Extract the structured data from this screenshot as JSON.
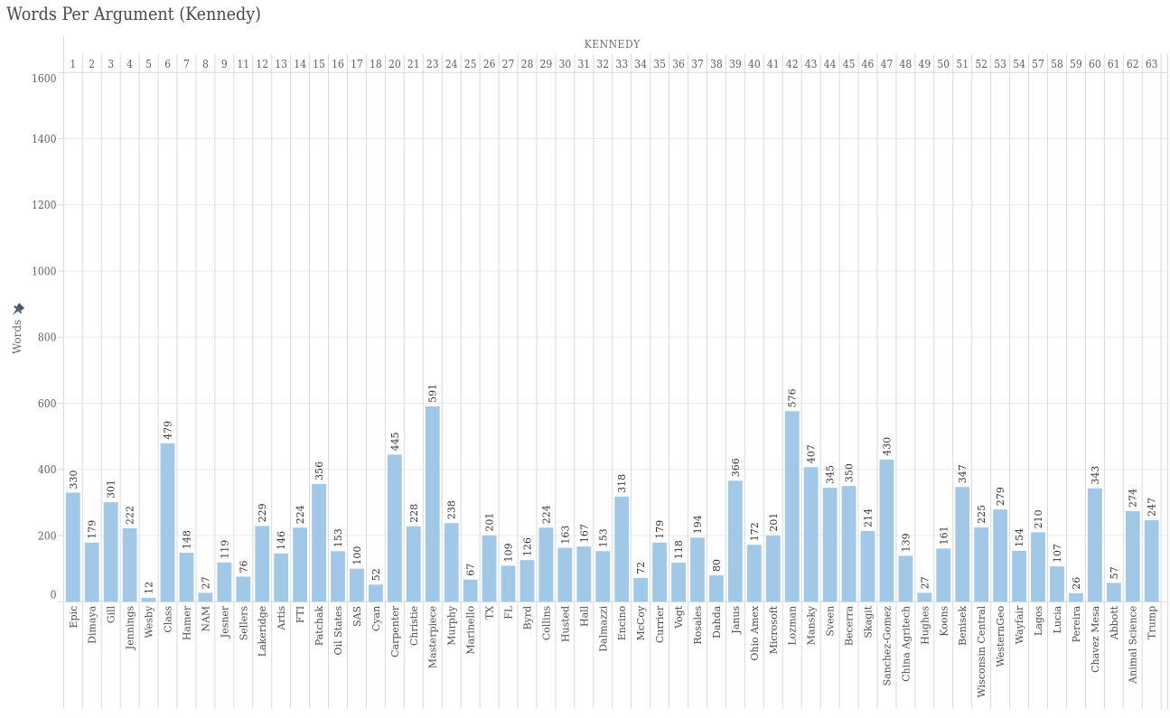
{
  "chart_data": {
    "type": "bar",
    "title": "Words Per Argument (Kennedy)",
    "column_group_label": "KENNEDY",
    "ylabel": "Words",
    "ylim": [
      0,
      1600
    ],
    "yticks": [
      0,
      200,
      400,
      600,
      800,
      1000,
      1200,
      1400,
      1600
    ],
    "grid": "horizontal",
    "legend": "none",
    "bar_color": "#a2c8e8",
    "y_axis_pinned": true,
    "columns": [
      {
        "num": "1",
        "case": "Epic",
        "value": 330
      },
      {
        "num": "2",
        "case": "Dimaya",
        "value": 179
      },
      {
        "num": "3",
        "case": "Gill",
        "value": 301
      },
      {
        "num": "4",
        "case": "Jennings",
        "value": 222
      },
      {
        "num": "5",
        "case": "Wesby",
        "value": 12
      },
      {
        "num": "6",
        "case": "Class",
        "value": 479
      },
      {
        "num": "7",
        "case": "Hamer",
        "value": 148
      },
      {
        "num": "8",
        "case": "NAM",
        "value": 27
      },
      {
        "num": "9",
        "case": "Jesner",
        "value": 119
      },
      {
        "num": "11",
        "case": "Sellers",
        "value": 76
      },
      {
        "num": "12",
        "case": "Lakeridge",
        "value": 229
      },
      {
        "num": "13",
        "case": "Artis",
        "value": 146
      },
      {
        "num": "14",
        "case": "FTI",
        "value": 224
      },
      {
        "num": "15",
        "case": "Patchak",
        "value": 356
      },
      {
        "num": "16",
        "case": "Oil States",
        "value": 153
      },
      {
        "num": "17",
        "case": "SAS",
        "value": 100
      },
      {
        "num": "18",
        "case": "Cyan",
        "value": 52
      },
      {
        "num": "20",
        "case": "Carpenter",
        "value": 445
      },
      {
        "num": "21",
        "case": "Christie",
        "value": 228
      },
      {
        "num": "23",
        "case": "Masterpiece",
        "value": 591
      },
      {
        "num": "24",
        "case": "Murphy",
        "value": 238
      },
      {
        "num": "25",
        "case": "Marinello",
        "value": 67
      },
      {
        "num": "26",
        "case": "TX",
        "value": 201
      },
      {
        "num": "27",
        "case": "FL",
        "value": 109
      },
      {
        "num": "28",
        "case": "Byrd",
        "value": 126
      },
      {
        "num": "29",
        "case": "Collins",
        "value": 224
      },
      {
        "num": "30",
        "case": "Husted",
        "value": 163
      },
      {
        "num": "31",
        "case": "Hall",
        "value": 167
      },
      {
        "num": "32",
        "case": "Dalmazzi",
        "value": 153
      },
      {
        "num": "33",
        "case": "Encino",
        "value": 318
      },
      {
        "num": "34",
        "case": "McCoy",
        "value": 72
      },
      {
        "num": "35",
        "case": "Currier",
        "value": 179
      },
      {
        "num": "36",
        "case": "Vogt",
        "value": 118
      },
      {
        "num": "37",
        "case": "Rosales",
        "value": 194
      },
      {
        "num": "38",
        "case": "Dahda",
        "value": 80
      },
      {
        "num": "39",
        "case": "Janus",
        "value": 366
      },
      {
        "num": "40",
        "case": "Ohio Amex",
        "value": 172
      },
      {
        "num": "41",
        "case": "Microsoft",
        "value": 201
      },
      {
        "num": "42",
        "case": "Lozman",
        "value": 576
      },
      {
        "num": "43",
        "case": "Mansky",
        "value": 407
      },
      {
        "num": "44",
        "case": "Sveen",
        "value": 345
      },
      {
        "num": "45",
        "case": "Becerra",
        "value": 350
      },
      {
        "num": "46",
        "case": "Skagit",
        "value": 214
      },
      {
        "num": "47",
        "case": "Sanchez-Gomez",
        "value": 430
      },
      {
        "num": "48",
        "case": "China Agritech",
        "value": 139
      },
      {
        "num": "49",
        "case": "Hughes",
        "value": 27
      },
      {
        "num": "50",
        "case": "Koons",
        "value": 161
      },
      {
        "num": "51",
        "case": "Benisek",
        "value": 347
      },
      {
        "num": "52",
        "case": "Wisconsin Central",
        "value": 225
      },
      {
        "num": "53",
        "case": "WesternGeo",
        "value": 279
      },
      {
        "num": "54",
        "case": "Wayfair",
        "value": 154
      },
      {
        "num": "57",
        "case": "Lagos",
        "value": 210
      },
      {
        "num": "58",
        "case": "Lucia",
        "value": 107
      },
      {
        "num": "59",
        "case": "Pereira",
        "value": 26
      },
      {
        "num": "60",
        "case": "Chavez Mesa",
        "value": 343
      },
      {
        "num": "61",
        "case": "Abbott",
        "value": 57
      },
      {
        "num": "62",
        "case": "Animal Science",
        "value": 274
      },
      {
        "num": "63",
        "case": "Trump",
        "value": 247
      }
    ]
  },
  "colors": {
    "bar": "#a2c8e8",
    "grid_line": "#eaeaea",
    "frame_line": "#d9d9d9",
    "tick_label": "#5f5f5f",
    "value_label": "#333333",
    "case_label": "#4d4d4d",
    "column_number": "#5f5f5f",
    "group_label": "#6b6b6b",
    "title": "#414b57",
    "axis_title": "#666666",
    "pin": "#4d5a66"
  }
}
